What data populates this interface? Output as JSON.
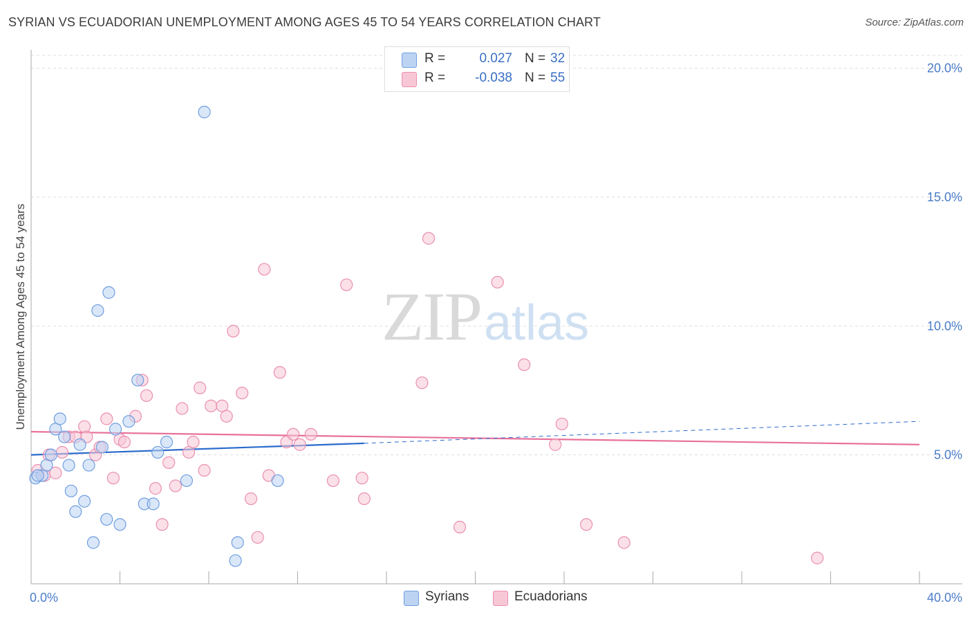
{
  "header": {
    "title": "SYRIAN VS ECUADORIAN UNEMPLOYMENT AMONG AGES 45 TO 54 YEARS CORRELATION CHART",
    "source": "Source: ZipAtlas.com"
  },
  "watermark": {
    "zip": "ZIP",
    "atlas": "atlas"
  },
  "legend": {
    "r_label": "R =",
    "n_label": "N =",
    "syrians": {
      "r": "0.027",
      "n": "32"
    },
    "ecuadorians": {
      "r": "-0.038",
      "n": "55"
    }
  },
  "colors": {
    "syrians_fill": "#bcd4f2",
    "syrians_stroke": "#6f9ee0",
    "syrians_line": "#2a6bcc",
    "ecuadorians_fill": "#f8c7d6",
    "ecuadorians_stroke": "#ea8fb0",
    "ecuadorians_line": "#e8709a",
    "tick_text": "#4a7cc9",
    "grid": "#dddddd"
  },
  "chart_data": {
    "type": "scatter",
    "title": "SYRIAN VS ECUADORIAN UNEMPLOYMENT AMONG AGES 45 TO 54 YEARS CORRELATION CHART",
    "xlabel": "",
    "ylabel": "Unemployment Among Ages 45 to 54 years",
    "xlim": [
      0,
      40
    ],
    "ylim": [
      0,
      20.5
    ],
    "x_tick_labels": [
      "0.0%",
      "40.0%"
    ],
    "y_ticks": [
      5,
      10,
      15,
      20
    ],
    "y_tick_labels": [
      "5.0%",
      "10.0%",
      "15.0%",
      "20.0%"
    ],
    "grid": true,
    "series": [
      {
        "name": "Syrians",
        "points": [
          [
            0.2,
            4.1
          ],
          [
            0.5,
            4.2
          ],
          [
            0.7,
            4.6
          ],
          [
            0.9,
            5.0
          ],
          [
            1.1,
            6.0
          ],
          [
            1.3,
            6.4
          ],
          [
            1.5,
            5.7
          ],
          [
            1.7,
            4.6
          ],
          [
            1.8,
            3.6
          ],
          [
            2.0,
            2.8
          ],
          [
            2.2,
            5.4
          ],
          [
            2.4,
            3.2
          ],
          [
            2.6,
            4.6
          ],
          [
            2.8,
            1.6
          ],
          [
            3.0,
            10.6
          ],
          [
            3.2,
            5.3
          ],
          [
            3.4,
            2.5
          ],
          [
            3.5,
            11.3
          ],
          [
            3.8,
            6.0
          ],
          [
            4.0,
            2.3
          ],
          [
            4.4,
            6.3
          ],
          [
            4.8,
            7.9
          ],
          [
            5.1,
            3.1
          ],
          [
            5.5,
            3.1
          ],
          [
            5.7,
            5.1
          ],
          [
            6.1,
            5.5
          ],
          [
            7.0,
            4.0
          ],
          [
            7.8,
            18.3
          ],
          [
            9.2,
            0.9
          ],
          [
            9.3,
            1.6
          ],
          [
            11.1,
            4.0
          ],
          [
            0.3,
            4.2
          ]
        ],
        "trend": {
          "x_start": 0,
          "y_start": 5.0,
          "x_solid_end": 15,
          "y_solid_end": 5.45,
          "x_end": 40,
          "y_end": 6.3
        }
      },
      {
        "name": "Ecuadorians",
        "points": [
          [
            0.3,
            4.4
          ],
          [
            0.6,
            4.2
          ],
          [
            0.8,
            5.0
          ],
          [
            1.1,
            4.3
          ],
          [
            1.4,
            5.1
          ],
          [
            1.7,
            5.7
          ],
          [
            2.0,
            5.7
          ],
          [
            2.4,
            6.1
          ],
          [
            2.5,
            5.7
          ],
          [
            2.9,
            5.0
          ],
          [
            3.1,
            5.3
          ],
          [
            3.4,
            6.4
          ],
          [
            3.7,
            4.1
          ],
          [
            4.0,
            5.6
          ],
          [
            4.2,
            5.5
          ],
          [
            4.7,
            6.5
          ],
          [
            5.0,
            7.9
          ],
          [
            5.2,
            7.3
          ],
          [
            5.6,
            3.7
          ],
          [
            5.9,
            2.3
          ],
          [
            6.2,
            4.7
          ],
          [
            6.5,
            3.8
          ],
          [
            6.8,
            6.8
          ],
          [
            7.1,
            5.1
          ],
          [
            7.3,
            5.5
          ],
          [
            7.6,
            7.6
          ],
          [
            7.8,
            4.4
          ],
          [
            8.1,
            6.9
          ],
          [
            8.6,
            6.9
          ],
          [
            8.8,
            6.5
          ],
          [
            9.1,
            9.8
          ],
          [
            9.5,
            7.4
          ],
          [
            9.9,
            3.3
          ],
          [
            10.2,
            1.8
          ],
          [
            10.5,
            12.2
          ],
          [
            10.7,
            4.2
          ],
          [
            11.2,
            8.2
          ],
          [
            11.5,
            5.5
          ],
          [
            11.8,
            5.8
          ],
          [
            12.1,
            5.4
          ],
          [
            12.6,
            5.8
          ],
          [
            13.6,
            4.0
          ],
          [
            14.2,
            11.6
          ],
          [
            14.9,
            4.1
          ],
          [
            15.0,
            3.3
          ],
          [
            17.6,
            7.8
          ],
          [
            17.9,
            13.4
          ],
          [
            19.3,
            2.2
          ],
          [
            21.0,
            11.7
          ],
          [
            22.2,
            8.5
          ],
          [
            23.6,
            5.4
          ],
          [
            23.9,
            6.2
          ],
          [
            25.0,
            2.3
          ],
          [
            26.7,
            1.6
          ],
          [
            35.4,
            1.0
          ]
        ],
        "trend": {
          "x_start": 0,
          "y_start": 5.9,
          "x_end": 40,
          "y_end": 5.4
        }
      }
    ]
  }
}
